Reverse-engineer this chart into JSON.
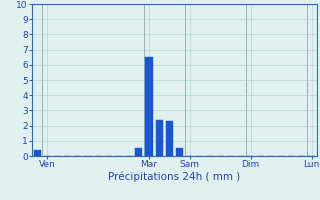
{
  "bars": [
    {
      "x": 0,
      "height": 0.4
    },
    {
      "x": 1,
      "height": 0.0
    },
    {
      "x": 2,
      "height": 0.0
    },
    {
      "x": 3,
      "height": 0.0
    },
    {
      "x": 4,
      "height": 0.0
    },
    {
      "x": 5,
      "height": 0.0
    },
    {
      "x": 6,
      "height": 0.0
    },
    {
      "x": 7,
      "height": 0.0
    },
    {
      "x": 8,
      "height": 0.0
    },
    {
      "x": 9,
      "height": 0.0
    },
    {
      "x": 10,
      "height": 0.55
    },
    {
      "x": 11,
      "height": 6.5
    },
    {
      "x": 12,
      "height": 2.4
    },
    {
      "x": 13,
      "height": 2.3
    },
    {
      "x": 14,
      "height": 0.55
    },
    {
      "x": 15,
      "height": 0.0
    },
    {
      "x": 16,
      "height": 0.0
    },
    {
      "x": 17,
      "height": 0.0
    },
    {
      "x": 18,
      "height": 0.0
    },
    {
      "x": 19,
      "height": 0.0
    },
    {
      "x": 20,
      "height": 0.0
    },
    {
      "x": 21,
      "height": 0.0
    },
    {
      "x": 22,
      "height": 0.0
    },
    {
      "x": 23,
      "height": 0.0
    },
    {
      "x": 24,
      "height": 0.0
    },
    {
      "x": 25,
      "height": 0.0
    },
    {
      "x": 26,
      "height": 0.0
    },
    {
      "x": 27,
      "height": 0.0
    }
  ],
  "bar_color": "#1a56cc",
  "bar_edge_color": "#1a56cc",
  "background_color": "#dff0ee",
  "grid_color": "#aacece",
  "grid_color_major": "#88aaaa",
  "axis_line_color": "#3366aa",
  "tick_label_color": "#2244aa",
  "xlabel": "Précipitations 24h ( mm )",
  "xlabel_color": "#2244aa",
  "ylim": [
    0,
    10
  ],
  "yticks": [
    0,
    1,
    2,
    3,
    4,
    5,
    6,
    7,
    8,
    9,
    10
  ],
  "n_bars": 28,
  "xtick_positions": [
    1,
    11,
    15,
    21,
    27
  ],
  "xtick_labels": [
    "Ven",
    "Mar",
    "Sam",
    "Dim",
    "Lun"
  ],
  "figsize": [
    3.2,
    2.0
  ],
  "dpi": 100
}
